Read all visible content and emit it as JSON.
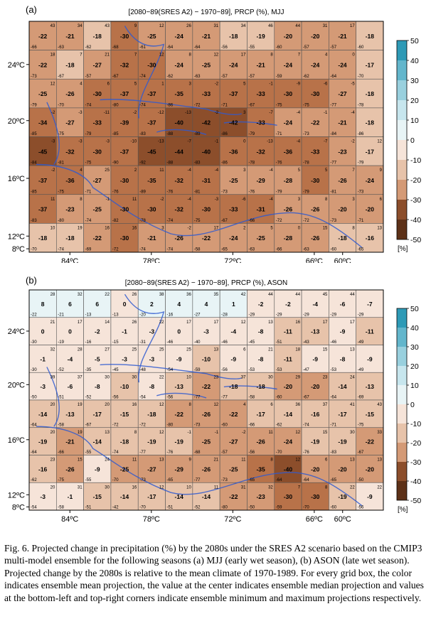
{
  "caption": "Fig. 6. Projected change in precipitation (%) by the 2080s under the SRES A2 scenario based on the CMIP3 multi-model ensemble for the following seasons (a) MJJ (early wet season), (b) ASON (late wet season). Projected change by the 2080s is relative to the mean climate of 1970-1989. For every grid box, the color indicates ensemble mean projection, the value at the center indicates ensemble median projection and values at the bottom-left and top-right corners indicate ensemble minimum and maximum projections respectively.",
  "colorbar": {
    "ticks": [
      "50",
      "40",
      "30",
      "20",
      "10",
      "0",
      "-10",
      "-20",
      "-30",
      "-40",
      "-50"
    ],
    "unit": "[%]",
    "colors": [
      "#2e9ab6",
      "#63b6cc",
      "#99d0de",
      "#c7e6ee",
      "#e8f4f6",
      "#f6e4d9",
      "#e7c3aa",
      "#d49a76",
      "#b87249",
      "#8c4e2b",
      "#5d3118"
    ]
  },
  "chart_data": [
    {
      "type": "heatmap",
      "panel_label": "(a)",
      "title": "[2080−89(SRES A2) − 1970−89], PRCP (%), MJJ",
      "xticks": [
        "84ºC",
        "78ºC",
        "72ºC",
        "66ºC",
        "60ºC"
      ],
      "yticks": [
        "24ºC",
        "20ºC",
        "16ºC",
        "12ºC",
        "8ºC"
      ],
      "zlim": [
        -50,
        50
      ],
      "grid": {
        "median": [
          [
            -22,
            -21,
            -18,
            -30,
            -25,
            -24,
            -21,
            -18,
            -19,
            -20,
            -20,
            -21,
            -18
          ],
          [
            -22,
            -18,
            -27,
            -32,
            -30,
            -24,
            -25,
            -24,
            -21,
            -24,
            -24,
            -24,
            -17
          ],
          [
            -25,
            -26,
            -30,
            -37,
            -37,
            -35,
            -33,
            -37,
            -33,
            -30,
            -30,
            -27,
            -18
          ],
          [
            -34,
            -27,
            -33,
            -39,
            -37,
            -40,
            -42,
            -42,
            -33,
            -24,
            -22,
            -21,
            -18
          ],
          [
            -45,
            -32,
            -30,
            -37,
            -45,
            -44,
            -40,
            -36,
            -32,
            -36,
            -33,
            -23,
            -17
          ],
          [
            -37,
            -36,
            -27,
            -30,
            -35,
            -32,
            -31,
            -25,
            -29,
            -28,
            -30,
            -26,
            -24
          ],
          [
            -37,
            -23,
            -25,
            -30,
            -30,
            -32,
            -30,
            -33,
            -31,
            -26,
            -26,
            -20,
            -20
          ],
          [
            -18,
            -18,
            -22,
            -30,
            -21,
            -26,
            -22,
            -24,
            -25,
            -28,
            -26,
            -18,
            -16
          ]
        ],
        "min": [
          [
            -66,
            -63,
            -62,
            -68,
            -61,
            -64,
            -64,
            -56,
            -55,
            -60,
            -57,
            -57,
            -60
          ],
          [
            -73,
            -67,
            -57,
            -67,
            -74,
            -62,
            -63,
            -57,
            -57,
            -59,
            -62,
            -64,
            -70
          ],
          [
            -79,
            -70,
            -74,
            -80,
            -74,
            -86,
            -72,
            -71,
            -67,
            -75,
            -75,
            -77,
            -78
          ],
          [
            -85,
            -75,
            -79,
            -85,
            -83,
            -88,
            -89,
            -86,
            -79,
            -71,
            -73,
            -84,
            -86
          ],
          [
            -84,
            -81,
            -75,
            -90,
            -92,
            -88,
            -83,
            -86,
            -78,
            -76,
            -78,
            -77,
            -79
          ],
          [
            -85,
            -75,
            -71,
            -76,
            -89,
            -76,
            -81,
            -73,
            -76,
            -79,
            -79,
            -81,
            -73
          ],
          [
            -83,
            -80,
            -74,
            -82,
            -78,
            -74,
            -75,
            -67,
            -66,
            -72,
            -72,
            -73,
            -71
          ],
          [
            -70,
            -74,
            -69,
            -72,
            -74,
            -74,
            -58,
            -65,
            -63,
            -66,
            -63,
            -60,
            -65
          ]
        ],
        "max": [
          [
            43,
            34,
            43,
            9,
            12,
            26,
            31,
            34,
            46,
            44,
            31,
            17,
            null
          ],
          [
            18,
            7,
            21,
            7,
            12,
            8,
            12,
            17,
            8,
            7,
            4,
            0,
            null
          ],
          [
            12,
            4,
            6,
            5,
            1,
            3,
            -2,
            5,
            -1,
            -9,
            -6,
            -5,
            null
          ],
          [
            -2,
            -3,
            -11,
            -2,
            -12,
            -13,
            -2,
            3,
            -7,
            -4,
            -1,
            -4,
            null
          ],
          [
            -3,
            -3,
            -3,
            -10,
            -13,
            -7,
            -1,
            0,
            -13,
            -4,
            -7,
            -2,
            12
          ],
          [
            -2,
            4,
            25,
            2,
            11,
            -4,
            -4,
            3,
            -4,
            5,
            5,
            7,
            9
          ],
          [
            11,
            8,
            -1,
            11,
            -2,
            -4,
            -3,
            -6,
            -4,
            3,
            8,
            3,
            6
          ],
          [
            10,
            19,
            16,
            16,
            3,
            -2,
            17,
            2,
            5,
            0,
            15,
            8,
            13
          ]
        ],
        "mean": [
          [
            -22,
            -21,
            -18,
            -30,
            -25,
            -24,
            -21,
            -18,
            -19,
            -20,
            -20,
            -21,
            -18
          ],
          [
            -22,
            -18,
            -27,
            -32,
            -30,
            -24,
            -25,
            -24,
            -21,
            -24,
            -24,
            -24,
            -17
          ],
          [
            -25,
            -26,
            -30,
            -37,
            -37,
            -35,
            -33,
            -37,
            -33,
            -30,
            -30,
            -27,
            -18
          ],
          [
            -34,
            -27,
            -33,
            -39,
            -37,
            -40,
            -42,
            -42,
            -33,
            -24,
            -22,
            -21,
            -18
          ],
          [
            -45,
            -32,
            -30,
            -37,
            -45,
            -44,
            -40,
            -36,
            -32,
            -36,
            -33,
            -23,
            -17
          ],
          [
            -37,
            -36,
            -27,
            -30,
            -35,
            -32,
            -31,
            -25,
            -29,
            -28,
            -30,
            -26,
            -24
          ],
          [
            -37,
            -23,
            -25,
            -30,
            -30,
            -32,
            -30,
            -33,
            -31,
            -26,
            -26,
            -20,
            -20
          ],
          [
            -18,
            -18,
            -22,
            -30,
            -21,
            -26,
            -22,
            -24,
            -25,
            -28,
            -26,
            -18,
            -16
          ]
        ]
      }
    },
    {
      "type": "heatmap",
      "panel_label": "(b)",
      "title": "[2080−89(SRES A2) − 1970−89], PRCP (%), ASON",
      "xticks": [
        "84ºC",
        "78ºC",
        "72ºC",
        "66ºC",
        "60ºC"
      ],
      "yticks": [
        "24ºC",
        "20ºC",
        "16ºC",
        "12ºC",
        "8ºC"
      ],
      "zlim": [
        -50,
        50
      ],
      "grid": {
        "median": [
          [
            8,
            6,
            6,
            0,
            2,
            4,
            4,
            1,
            -2,
            -2,
            -4,
            -6,
            -7
          ],
          [
            0,
            0,
            -2,
            -1,
            -3,
            0,
            -3,
            -4,
            -8,
            -11,
            -13,
            -9,
            -11
          ],
          [
            -1,
            -4,
            -5,
            -3,
            -3,
            -9,
            -10,
            -9,
            -8,
            -11,
            -9,
            -8,
            -9
          ],
          [
            -3,
            -6,
            -8,
            -10,
            -8,
            -13,
            -22,
            -18,
            -18,
            -20,
            -20,
            -14,
            -13
          ],
          [
            -14,
            -13,
            -17,
            -15,
            -18,
            -22,
            -26,
            -22,
            -17,
            -14,
            -16,
            -17,
            -15
          ],
          [
            -19,
            -21,
            -14,
            -18,
            -19,
            -19,
            -25,
            -27,
            -26,
            -24,
            -19,
            -19,
            -22
          ],
          [
            -16,
            -26,
            -9,
            -25,
            -27,
            -29,
            -26,
            -25,
            -35,
            -40,
            -20,
            -20,
            -20
          ],
          [
            -3,
            -1,
            -15,
            -14,
            -17,
            -14,
            -14,
            -22,
            -23,
            -30,
            -30,
            -19,
            -9
          ]
        ],
        "min": [
          [
            -22,
            -21,
            -13,
            -13,
            -20,
            -16,
            -27,
            -28,
            -29,
            -29,
            -29,
            -29,
            -29
          ],
          [
            -30,
            -19,
            -16,
            -15,
            -31,
            -46,
            -40,
            -46,
            -45,
            -51,
            -43,
            -46,
            -49
          ],
          [
            -30,
            -52,
            -35,
            -45,
            -48,
            -54,
            -59,
            -56,
            -53,
            -53,
            -47,
            -53,
            -49
          ],
          [
            -50,
            -51,
            -52,
            -56,
            -54,
            -56,
            -77,
            -77,
            -58,
            -60,
            -67,
            -64,
            -69
          ],
          [
            -64,
            -58,
            -67,
            -72,
            -72,
            -80,
            -73,
            -60,
            -66,
            -62,
            -74,
            -71,
            -75
          ],
          [
            -64,
            -66,
            -55,
            -74,
            -77,
            -76,
            -68,
            -57,
            -56,
            -70,
            -76,
            -83,
            -67
          ],
          [
            -62,
            -75,
            -55,
            -70,
            -73,
            -65,
            -77,
            -73,
            -65,
            -64,
            -64,
            -65,
            -50
          ],
          [
            -54,
            -58,
            -51,
            -42,
            -70,
            -51,
            -52,
            -80,
            -50,
            -59,
            -70,
            -60,
            -56
          ]
        ],
        "max": [
          [
            28,
            32,
            22,
            26,
            38,
            36,
            35,
            42,
            44,
            44,
            45,
            44,
            null
          ],
          [
            21,
            17,
            14,
            26,
            22,
            17,
            17,
            12,
            13,
            16,
            17,
            17,
            null
          ],
          [
            32,
            28,
            27,
            25,
            25,
            25,
            13,
            6,
            21,
            18,
            15,
            13,
            null
          ],
          [
            39,
            37,
            30,
            30,
            22,
            10,
            23,
            37,
            30,
            29,
            23,
            24,
            null
          ],
          [
            20,
            19,
            20,
            16,
            12,
            8,
            12,
            4,
            6,
            36,
            37,
            41,
            43
          ],
          [
            20,
            19,
            13,
            8,
            12,
            -1,
            -1,
            -2,
            11,
            12,
            15,
            30,
            33
          ],
          [
            23,
            15,
            24,
            11,
            13,
            9,
            21,
            11,
            8,
            12,
            6,
            13,
            13
          ],
          [
            20,
            31,
            30,
            16,
            12,
            10,
            11,
            31,
            32,
            7,
            8,
            22,
            22
          ]
        ],
        "mean": [
          [
            8,
            6,
            6,
            0,
            2,
            4,
            4,
            1,
            -2,
            -2,
            -4,
            -6,
            -7
          ],
          [
            0,
            0,
            -2,
            -1,
            -3,
            0,
            -3,
            -4,
            -8,
            -11,
            -13,
            -9,
            -11
          ],
          [
            -1,
            -4,
            -5,
            -3,
            -3,
            -9,
            -10,
            -9,
            -8,
            -11,
            -9,
            -8,
            -9
          ],
          [
            -3,
            -6,
            -8,
            -10,
            -8,
            -13,
            -22,
            -18,
            -18,
            -20,
            -20,
            -14,
            -13
          ],
          [
            -14,
            -13,
            -17,
            -15,
            -18,
            -22,
            -26,
            -22,
            -17,
            -14,
            -16,
            -17,
            -15
          ],
          [
            -19,
            -21,
            -14,
            -18,
            -19,
            -19,
            -25,
            -27,
            -26,
            -24,
            -19,
            -19,
            -22
          ],
          [
            -16,
            -26,
            -9,
            -25,
            -27,
            -29,
            -26,
            -25,
            -35,
            -40,
            -20,
            -20,
            -20
          ],
          [
            -3,
            -1,
            -15,
            -14,
            -17,
            -14,
            -14,
            -22,
            -23,
            -30,
            -30,
            -19,
            -9
          ]
        ]
      }
    }
  ]
}
